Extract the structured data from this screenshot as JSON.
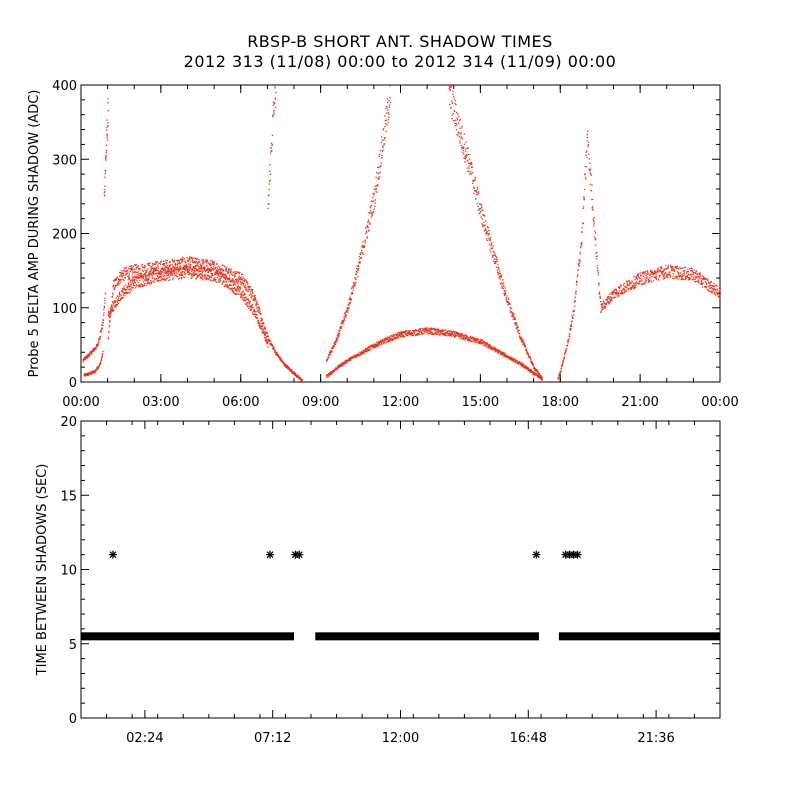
{
  "title_line1": "RBSP-B SHORT ANT. SHADOW TIMES",
  "title_line2": "2012 313 (11/08) 00:00 to 2012 314 (11/09) 00:00",
  "colors": {
    "panel1_series": "#e8341c",
    "panel2_series": "#000000",
    "axes": "#000000"
  },
  "chart_data": [
    {
      "type": "scatter",
      "ylabel": "Probe 5 DELTA AMP DURING SHADOW (ADC)",
      "xlabel": "",
      "xlim": [
        0,
        24
      ],
      "ylim": [
        0,
        400
      ],
      "xtick_labels": [
        "00:00",
        "03:00",
        "06:00",
        "09:00",
        "12:00",
        "15:00",
        "18:00",
        "21:00",
        "00:00"
      ],
      "ytick_labels": [
        "0",
        "100",
        "200",
        "300",
        "400"
      ],
      "series": [
        {
          "marker": "dot",
          "segments": [
            {
              "x": [
                0.1,
                0.3,
                0.5,
                0.7,
                0.8
              ],
              "y": [
                10,
                12,
                15,
                25,
                40
              ]
            },
            {
              "x": [
                0.05,
                0.3,
                0.6,
                0.8,
                0.9
              ],
              "y": [
                30,
                38,
                50,
                80,
                120
              ]
            },
            {
              "x": [
                0.85,
                0.9,
                0.95,
                1.0
              ],
              "y": [
                250,
                295,
                330,
                370
              ]
            },
            {
              "x": [
                1.0,
                1.2,
                1.5,
                2.0,
                3.0,
                4.0,
                5.0,
                6.0,
                6.5,
                6.8,
                7.0,
                7.3,
                7.6,
                8.0,
                8.3
              ],
              "y": [
                60,
                130,
                145,
                150,
                155,
                160,
                155,
                140,
                115,
                80,
                60,
                40,
                25,
                12,
                2
              ]
            },
            {
              "x": [
                1.0,
                1.5,
                2.0,
                3.0,
                4.0,
                5.0,
                5.5,
                6.0,
                6.5,
                6.8,
                7.0
              ],
              "y": [
                90,
                120,
                135,
                145,
                150,
                145,
                135,
                120,
                95,
                70,
                50
              ]
            },
            {
              "x": [
                7.0,
                7.1,
                7.2,
                7.3
              ],
              "y": [
                230,
                300,
                360,
                395
              ]
            },
            {
              "x": [
                9.2,
                9.6,
                10.0,
                10.5,
                11.0,
                11.5,
                12.0,
                13.0,
                14.0,
                15.0,
                15.5,
                16.0,
                16.5,
                17.0,
                17.3
              ],
              "y": [
                8,
                20,
                30,
                40,
                50,
                58,
                65,
                70,
                65,
                55,
                45,
                35,
                25,
                12,
                5
              ]
            },
            {
              "x": [
                9.2,
                9.6,
                10.0,
                10.5,
                11.0,
                11.3,
                11.6
              ],
              "y": [
                30,
                60,
                100,
                170,
                250,
                320,
                390
              ]
            },
            {
              "x": [
                13.8,
                14.2,
                14.6,
                15.0,
                15.5,
                16.0,
                16.5,
                17.0,
                17.3
              ],
              "y": [
                390,
                340,
                290,
                230,
                170,
                110,
                60,
                20,
                5
              ]
            },
            {
              "x": [
                17.9,
                18.1,
                18.3,
                18.5,
                18.8,
                19.0,
                19.5,
                20.0,
                21.0,
                22.0,
                23.0,
                24.0
              ],
              "y": [
                5,
                30,
                60,
                100,
                200,
                330,
                100,
                120,
                140,
                150,
                145,
                120
              ]
            }
          ]
        }
      ]
    },
    {
      "type": "scatter",
      "ylabel": "TIME BETWEEN SHADOWS (SEC)",
      "xlabel": "",
      "xlim": [
        0,
        24
      ],
      "ylim": [
        0,
        20
      ],
      "xtick_values": [
        2.4,
        7.2,
        12.0,
        16.8,
        21.6
      ],
      "xtick_labels": [
        "02:24",
        "07:12",
        "12:00",
        "16:48",
        "21:36"
      ],
      "ytick_labels": [
        "0",
        "5",
        "10",
        "15",
        "20"
      ],
      "series": [
        {
          "marker": "asterisk",
          "baseline_value": 5.5,
          "baseline_ranges": [
            [
              0.0,
              8.0
            ],
            [
              8.8,
              17.2
            ],
            [
              17.95,
              24.0
            ]
          ],
          "outliers": [
            {
              "x": 1.2,
              "y": 11
            },
            {
              "x": 7.1,
              "y": 11
            },
            {
              "x": 8.05,
              "y": 11
            },
            {
              "x": 8.2,
              "y": 11
            },
            {
              "x": 17.1,
              "y": 11
            },
            {
              "x": 18.2,
              "y": 11
            },
            {
              "x": 18.35,
              "y": 11
            },
            {
              "x": 18.5,
              "y": 11
            },
            {
              "x": 18.65,
              "y": 11
            }
          ]
        }
      ]
    }
  ]
}
